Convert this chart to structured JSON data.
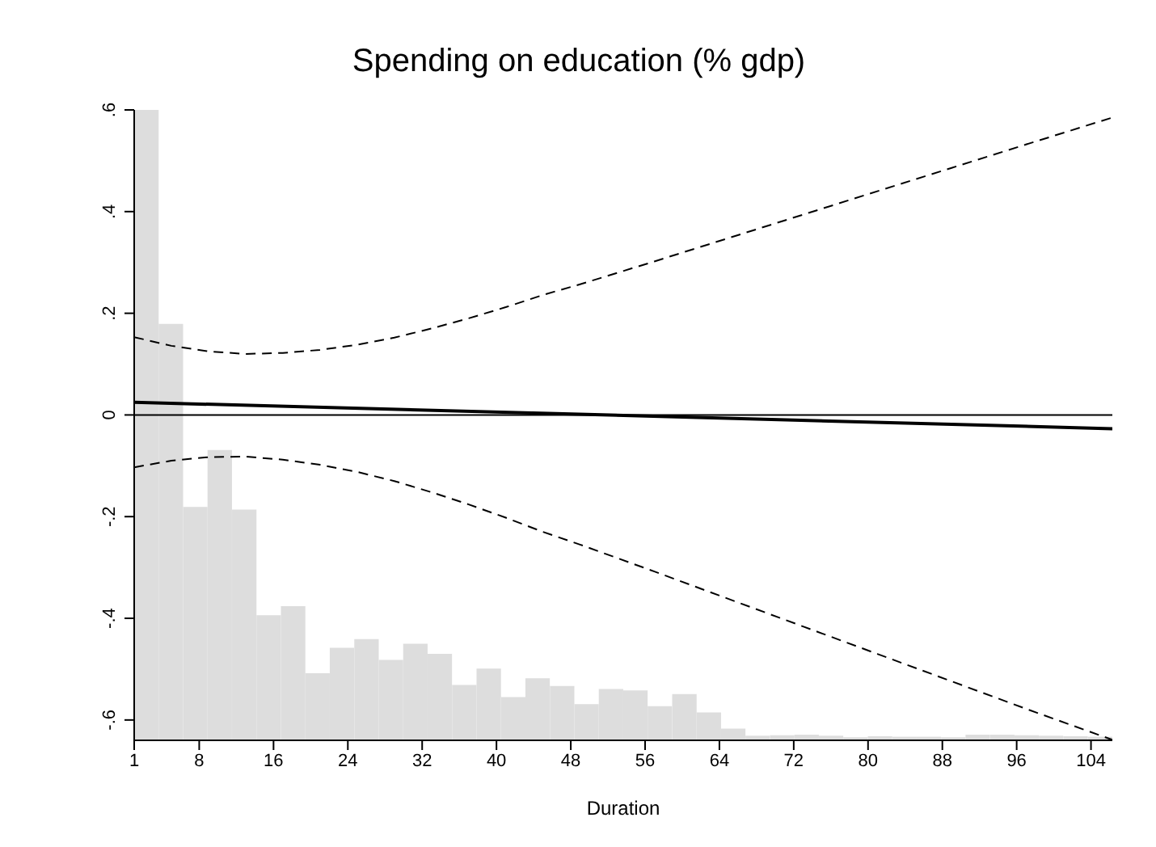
{
  "chart_data": {
    "type": "line",
    "title": "Spending on education (% gdp)",
    "xlabel": "Duration",
    "xlim": [
      1,
      106.3
    ],
    "xticks": [
      1,
      8,
      16,
      24,
      32,
      40,
      48,
      56,
      64,
      72,
      80,
      88,
      96,
      104
    ],
    "ylim": [
      -0.64,
      0.6
    ],
    "yticks": [
      {
        "value": -0.6,
        "label": "-.6"
      },
      {
        "value": -0.4,
        "label": "-.4"
      },
      {
        "value": -0.2,
        "label": "-.2"
      },
      {
        "value": 0,
        "label": "0"
      },
      {
        "value": 0.2,
        "label": ".2"
      },
      {
        "value": 0.4,
        "label": ".4"
      },
      {
        "value": 0.6,
        "label": ".6"
      }
    ],
    "grid": false,
    "legend": false,
    "marker": "none",
    "ref_lines": [
      {
        "axis": "y",
        "value": 0,
        "color": "#000000",
        "line_style": "solid"
      }
    ],
    "series": [
      {
        "type": "bar",
        "color": "#dddddd",
        "x": [
          2.32,
          4.95,
          7.58,
          10.21,
          12.85,
          15.48,
          18.11,
          20.74,
          23.37,
          26.01,
          28.64,
          31.27,
          33.9,
          36.54,
          39.17,
          41.8,
          44.43,
          47.07,
          49.7,
          52.33,
          54.96,
          57.59,
          60.23,
          62.86,
          65.49,
          68.12,
          70.76,
          73.39,
          76.02,
          78.65,
          81.29,
          83.92,
          86.55,
          89.18,
          91.81,
          94.45,
          97.08,
          99.71,
          102.34,
          104.98
        ],
        "base": [
          -0.64,
          -0.64,
          -0.64,
          -0.64,
          -0.64,
          -0.64,
          -0.64,
          -0.64,
          -0.64,
          -0.64,
          -0.64,
          -0.64,
          -0.64,
          -0.64,
          -0.64,
          -0.64,
          -0.64,
          -0.64,
          -0.64,
          -0.64,
          -0.64,
          -0.64,
          -0.64,
          -0.64,
          -0.64,
          -0.64,
          -0.64,
          -0.64,
          -0.64,
          -0.64,
          -0.64,
          -0.64,
          -0.64,
          -0.64,
          -0.64,
          -0.64,
          -0.64,
          -0.64,
          -0.64,
          -0.64
        ],
        "values": [
          1.24,
          0.819,
          0.459,
          0.571,
          0.454,
          0.246,
          0.264,
          0.132,
          0.182,
          0.199,
          0.158,
          0.19,
          0.17,
          0.109,
          0.141,
          0.085,
          0.122,
          0.107,
          0.071,
          0.101,
          0.098,
          0.067,
          0.091,
          0.055,
          0.023,
          0.009,
          0.01,
          0.011,
          0.009,
          0.006,
          0.008,
          0.007,
          0.007,
          0.006,
          0.011,
          0.011,
          0.01,
          0.009,
          0.008,
          0.007
        ]
      },
      {
        "color": "#000000",
        "line_style": "solid",
        "x": [
          1,
          106.3
        ],
        "values": [
          0.025,
          -0.027
        ]
      },
      {
        "color": "#000000",
        "line_style": "dashed",
        "x": [
          1,
          5,
          9,
          13,
          17,
          21,
          25,
          29,
          33,
          37,
          41,
          45,
          49,
          57,
          65,
          73,
          81,
          89,
          97,
          106.3
        ],
        "values": [
          0.153,
          0.136,
          0.125,
          0.12,
          0.122,
          0.128,
          0.138,
          0.152,
          0.17,
          0.19,
          0.212,
          0.236,
          0.257,
          0.302,
          0.348,
          0.394,
          0.44,
          0.486,
          0.532,
          0.585
        ]
      },
      {
        "color": "#000000",
        "line_style": "dashed",
        "x": [
          1,
          5,
          9,
          13,
          17,
          21,
          25,
          29,
          33,
          37,
          41,
          45,
          49,
          57,
          65,
          73,
          81,
          89,
          97,
          106.3
        ],
        "values": [
          -0.103,
          -0.09,
          -0.083,
          -0.082,
          -0.088,
          -0.098,
          -0.112,
          -0.13,
          -0.152,
          -0.176,
          -0.202,
          -0.23,
          -0.255,
          -0.308,
          -0.362,
          -0.416,
          -0.47,
          -0.524,
          -0.578,
          -0.639
        ]
      }
    ]
  }
}
